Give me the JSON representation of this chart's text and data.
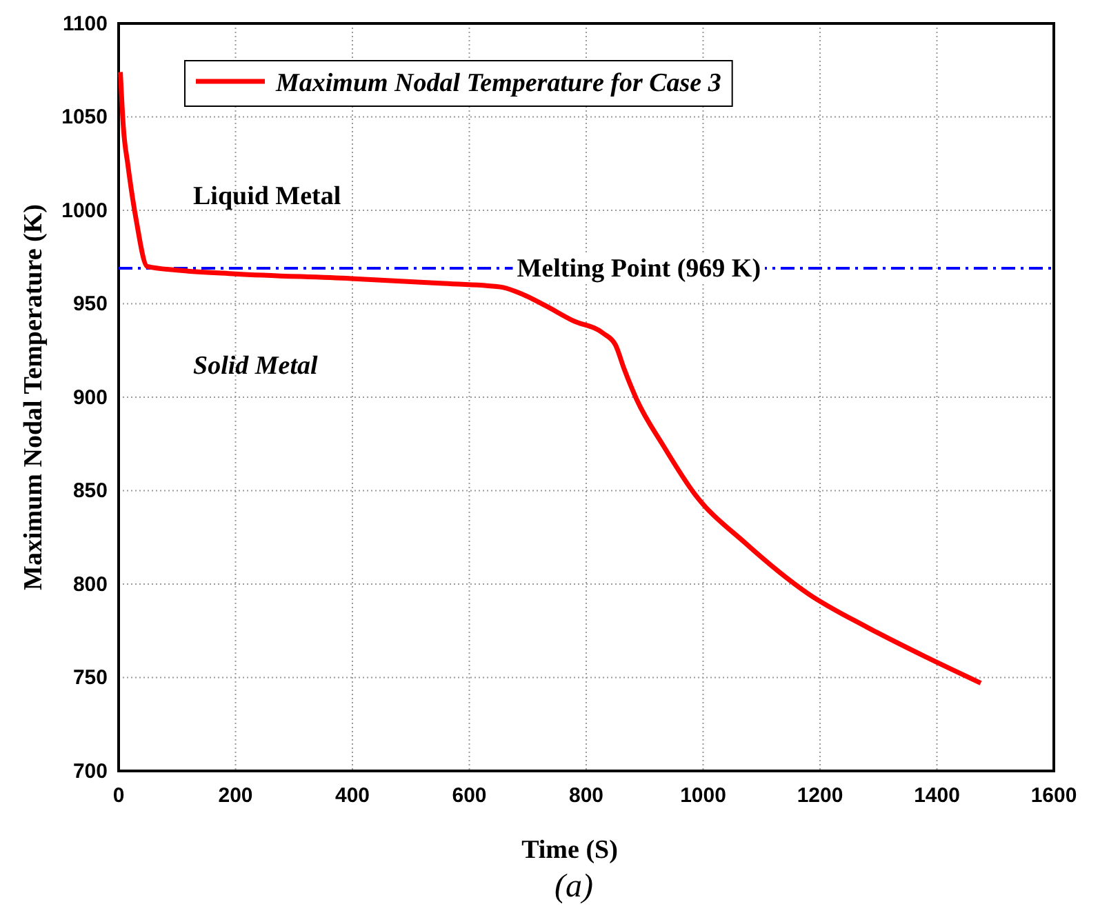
{
  "chart_data": {
    "type": "line",
    "xlabel": "Time (S)",
    "ylabel": "Maximum Nodal Temperature (K)",
    "xlim": [
      0,
      1600
    ],
    "xticks": [
      0,
      200,
      400,
      600,
      800,
      1000,
      1200,
      1400,
      1600
    ],
    "ylim": [
      700,
      1100
    ],
    "yticks": [
      700,
      750,
      800,
      850,
      900,
      950,
      1000,
      1050,
      1100
    ],
    "grid": true,
    "legend": "top left",
    "line_style": "solid",
    "marker": "none",
    "series": [
      {
        "name": "Maximum Nodal Temperature for Case 3",
        "color": "#ff0000",
        "x": [
          3,
          8,
          16,
          30,
          49,
          100,
          200,
          398,
          550,
          653,
          684,
          730,
          777,
          830,
          850,
          865,
          886,
          932,
          986,
          1072,
          1179,
          1280,
          1381,
          1475
        ],
        "values": [
          1074,
          1045,
          1024,
          995,
          970,
          968,
          966,
          963.5,
          961,
          959,
          956,
          949,
          941,
          934,
          928,
          915,
          899,
          874,
          848,
          822,
          795,
          777,
          761,
          747
        ]
      }
    ],
    "ref_lines": [
      {
        "axis": "y",
        "value": 969,
        "label": "Melting Point (969 K)",
        "color": "#0000ff",
        "line_style": "dashdot"
      }
    ],
    "annotations": [
      "Liquid Metal",
      "Solid Metal",
      "(a)"
    ]
  }
}
